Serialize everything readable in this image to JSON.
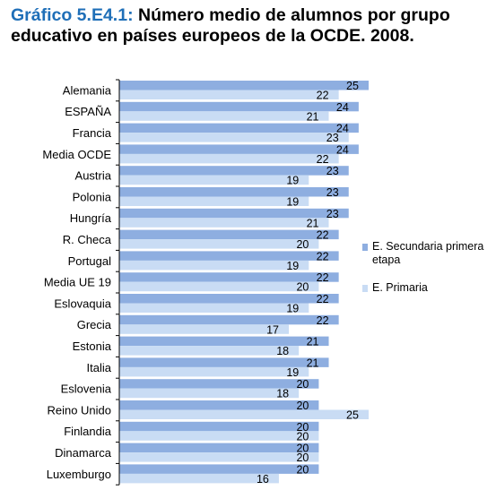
{
  "title": {
    "prefix": "Gráfico 5.E4.1:",
    "text": " Número medio de alumnos por grupo educativo en países europeos de la OCDE. 2008."
  },
  "colors": {
    "secundaria": "#8eaee0",
    "primaria": "#c9dcf4",
    "title_accent": "#1f6fb8",
    "axis": "#000000"
  },
  "chart_data": {
    "type": "bar",
    "orientation": "horizontal",
    "title": "Gráfico 5.E4.1: Número medio de alumnos por grupo educativo en países europeos de la OCDE. 2008.",
    "xlim": [
      0,
      25
    ],
    "grid": false,
    "legend_position": "right",
    "categories": [
      "Alemania",
      "ESPAÑA",
      "Francia",
      "Media OCDE",
      "Austria",
      "Polonia",
      "Hungría",
      "R. Checa",
      "Portugal",
      "Media UE 19",
      "Eslovaquia",
      "Grecia",
      "Estonia",
      "Italia",
      "Eslovenia",
      "Reino Unido",
      "Finlandia",
      "Dinamarca",
      "Luxemburgo"
    ],
    "series": [
      {
        "name": "E. Secundaria primera etapa",
        "values": [
          25,
          24,
          24,
          24,
          23,
          23,
          23,
          22,
          22,
          22,
          22,
          22,
          21,
          21,
          20,
          20,
          20,
          20,
          20
        ]
      },
      {
        "name": "E. Primaria",
        "values": [
          22,
          21,
          23,
          22,
          19,
          19,
          21,
          20,
          19,
          20,
          19,
          17,
          18,
          19,
          18,
          25,
          20,
          20,
          16
        ]
      }
    ],
    "data_labels": [
      [
        "25",
        "24",
        "24",
        "24",
        "23",
        "23",
        "23",
        "22",
        "22",
        "22",
        "22",
        "22",
        "21",
        "21",
        "20",
        "20",
        "20",
        "20",
        "20"
      ],
      [
        "22",
        "21",
        "23",
        "22",
        "19",
        "19",
        "21",
        "20",
        "19",
        "20",
        "19",
        "17",
        "18",
        "19",
        "18",
        "25",
        "20",
        "20",
        "16"
      ]
    ]
  }
}
